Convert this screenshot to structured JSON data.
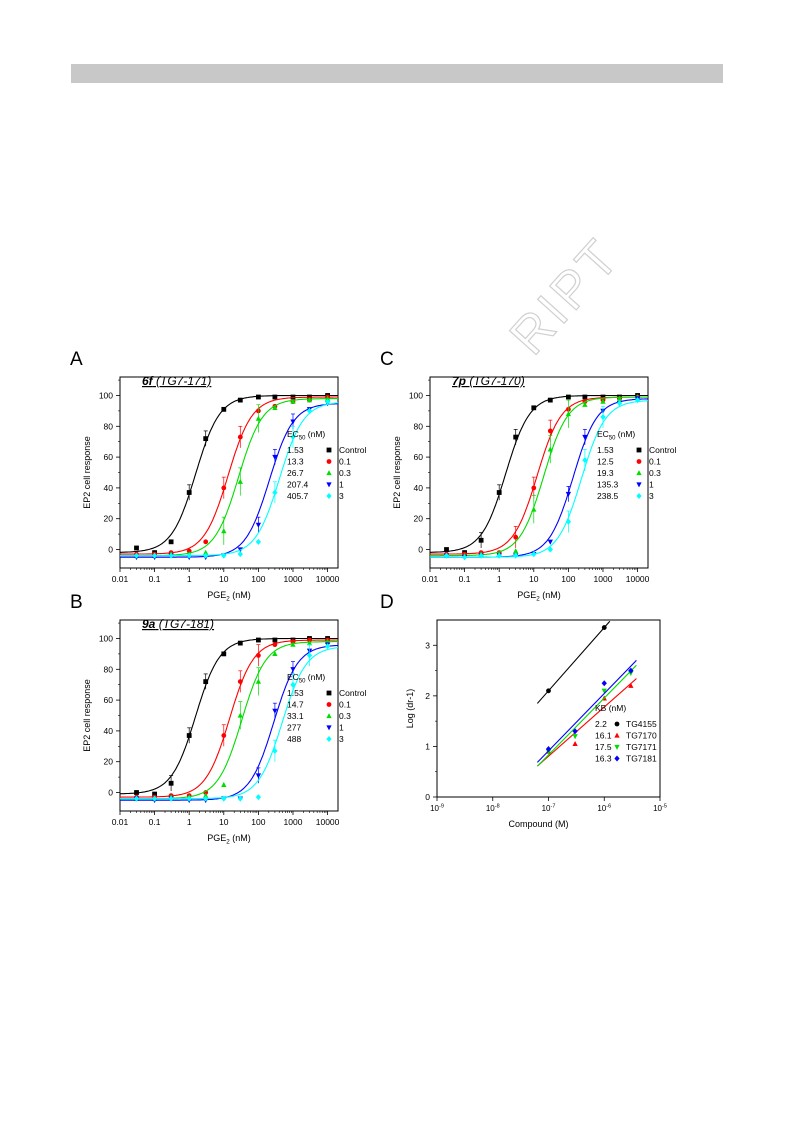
{
  "watermark": "RIPT",
  "chart_data": [
    {
      "panel_letter": "A",
      "type": "scatter",
      "title_compound": "6f",
      "title_code": "(TG7-171)",
      "xlabel": "PGE",
      "xlabel_sub": "2",
      "xlabel_unit": " (nM)",
      "ylabel": "EP2 cell response",
      "xscale": "log",
      "xlim": [
        0.01,
        20000
      ],
      "ylim": [
        -12,
        112
      ],
      "xticks": [
        "0.01",
        "0.1",
        "1",
        "10",
        "100",
        "1000",
        "10000"
      ],
      "yticks": [
        "0",
        "20",
        "40",
        "60",
        "80",
        "100"
      ],
      "legend_title": "EC",
      "legend_title_sub": "50",
      "legend_title_unit": " (nM)",
      "series": [
        {
          "name": "Control",
          "ec50_label": "1.53",
          "ec50": 1.53,
          "color": "#000000",
          "marker": "square",
          "x": [
            0.03,
            0.1,
            0.3,
            1,
            3,
            10,
            30,
            100,
            300,
            1000,
            3000,
            10000
          ],
          "y": [
            1,
            -2,
            5,
            37,
            72,
            91,
            97,
            99,
            99,
            99,
            99,
            100
          ]
        },
        {
          "name": "0.1",
          "ec50_label": "13.3",
          "ec50": 13.3,
          "color": "#ff0000",
          "marker": "circle",
          "x": [
            0.03,
            0.1,
            0.3,
            1,
            3,
            10,
            30,
            100,
            300,
            1000,
            3000,
            10000
          ],
          "y": [
            -3,
            -3,
            -2,
            -1,
            5,
            40,
            73,
            90,
            93,
            96,
            97,
            99
          ]
        },
        {
          "name": "0.3",
          "ec50_label": "26.7",
          "ec50": 26.7,
          "color": "#00dd00",
          "marker": "triangle-up",
          "x": [
            0.03,
            0.1,
            0.3,
            1,
            3,
            10,
            30,
            100,
            300,
            1000,
            3000,
            10000
          ],
          "y": [
            -4,
            -4,
            -3,
            -3,
            -2,
            12,
            44,
            85,
            92,
            96,
            97,
            98
          ]
        },
        {
          "name": "1",
          "ec50_label": "207.4",
          "ec50": 207.4,
          "color": "#0000ff",
          "marker": "triangle-down",
          "x": [
            0.03,
            0.1,
            0.3,
            1,
            3,
            10,
            30,
            100,
            300,
            1000,
            3000,
            10000
          ],
          "y": [
            -5,
            -5,
            -4,
            -5,
            -5,
            -4,
            0,
            16,
            60,
            83,
            91,
            95
          ]
        },
        {
          "name": "3",
          "ec50_label": "405.7",
          "ec50": 405.7,
          "color": "#00ffff",
          "marker": "diamond",
          "x": [
            0.03,
            0.1,
            0.3,
            1,
            3,
            10,
            30,
            100,
            300,
            1000,
            3000,
            10000
          ],
          "y": [
            -4,
            -4,
            -4,
            -4,
            -4,
            -4,
            -3,
            5,
            37,
            73,
            90,
            96
          ]
        }
      ]
    },
    {
      "panel_letter": "C",
      "type": "scatter",
      "title_compound": "7p",
      "title_code": "(TG7-170)",
      "xlabel": "PGE",
      "xlabel_sub": "2",
      "xlabel_unit": " (nM)",
      "ylabel": "EP2 cell response",
      "xscale": "log",
      "xlim": [
        0.01,
        20000
      ],
      "ylim": [
        -12,
        112
      ],
      "xticks": [
        "0.01",
        "0.1",
        "1",
        "10",
        "100",
        "1000",
        "10000"
      ],
      "yticks": [
        "0",
        "20",
        "40",
        "60",
        "80",
        "100"
      ],
      "legend_title": "EC",
      "legend_title_sub": "50",
      "legend_title_unit": " (nM)",
      "series": [
        {
          "name": "Control",
          "ec50_label": "1.53",
          "ec50": 1.53,
          "color": "#000000",
          "marker": "square",
          "x": [
            0.03,
            0.1,
            0.3,
            1,
            3,
            10,
            30,
            100,
            300,
            1000,
            3000,
            10000
          ],
          "y": [
            0,
            -2,
            6,
            37,
            73,
            92,
            97,
            99,
            99,
            99,
            99,
            100
          ]
        },
        {
          "name": "0.1",
          "ec50_label": "12.5",
          "ec50": 12.5,
          "color": "#ff0000",
          "marker": "circle",
          "x": [
            0.03,
            0.1,
            0.3,
            1,
            3,
            10,
            30,
            100,
            300,
            1000,
            3000,
            10000
          ],
          "y": [
            -3,
            -3,
            -2,
            -2,
            8,
            40,
            77,
            91,
            96,
            97,
            98,
            99
          ]
        },
        {
          "name": "0.3",
          "ec50_label": "19.3",
          "ec50": 19.3,
          "color": "#00dd00",
          "marker": "triangle-up",
          "x": [
            0.03,
            0.1,
            0.3,
            1,
            3,
            10,
            30,
            100,
            300,
            1000,
            3000,
            10000
          ],
          "y": [
            -4,
            -4,
            -3,
            -3,
            -1,
            26,
            65,
            88,
            94,
            96,
            98,
            99
          ]
        },
        {
          "name": "1",
          "ec50_label": "135.3",
          "ec50": 135.3,
          "color": "#0000ff",
          "marker": "triangle-down",
          "x": [
            0.03,
            0.1,
            0.3,
            1,
            3,
            10,
            30,
            100,
            300,
            1000,
            3000,
            10000
          ],
          "y": [
            -4,
            -5,
            -4,
            -4,
            -4,
            -3,
            5,
            36,
            73,
            90,
            95,
            98
          ]
        },
        {
          "name": "3",
          "ec50_label": "238.5",
          "ec50": 238.5,
          "color": "#00ffff",
          "marker": "diamond",
          "x": [
            0.03,
            0.1,
            0.3,
            1,
            3,
            10,
            30,
            100,
            300,
            1000,
            3000,
            10000
          ],
          "y": [
            -4,
            -5,
            -4,
            -4,
            -4,
            -3,
            0,
            18,
            58,
            86,
            95,
            97
          ]
        }
      ]
    },
    {
      "panel_letter": "B",
      "type": "scatter",
      "title_compound": "9a",
      "title_code": "(TG7-181)",
      "xlabel": "PGE",
      "xlabel_sub": "2",
      "xlabel_unit": " (nM)",
      "ylabel": "EP2 cell response",
      "xscale": "log",
      "xlim": [
        0.01,
        20000
      ],
      "ylim": [
        -12,
        112
      ],
      "xticks": [
        "0.01",
        "0.1",
        "1",
        "10",
        "100",
        "1000",
        "10000"
      ],
      "yticks": [
        "0",
        "20",
        "40",
        "60",
        "80",
        "100"
      ],
      "legend_title": "EC",
      "legend_title_sub": "50",
      "legend_title_unit": " (nM)",
      "series": [
        {
          "name": "Control",
          "ec50_label": "1.53",
          "ec50": 1.53,
          "color": "#000000",
          "marker": "square",
          "x": [
            0.03,
            0.1,
            0.3,
            1,
            3,
            10,
            30,
            100,
            300,
            1000,
            3000,
            10000
          ],
          "y": [
            0,
            -1,
            6,
            37,
            72,
            90,
            97,
            99,
            99,
            99,
            100,
            100
          ]
        },
        {
          "name": "0.1",
          "ec50_label": "14.7",
          "ec50": 14.7,
          "color": "#ff0000",
          "marker": "circle",
          "x": [
            0.03,
            0.1,
            0.3,
            1,
            3,
            10,
            30,
            100,
            300,
            1000,
            3000,
            10000
          ],
          "y": [
            -3,
            -3,
            -2,
            -2,
            0,
            37,
            72,
            89,
            96,
            98,
            99,
            99
          ]
        },
        {
          "name": "0.3",
          "ec50_label": "33.1",
          "ec50": 33.1,
          "color": "#00dd00",
          "marker": "triangle-up",
          "x": [
            0.03,
            0.1,
            0.3,
            1,
            3,
            10,
            30,
            100,
            300,
            1000,
            3000,
            10000
          ],
          "y": [
            -4,
            -4,
            -3,
            -3,
            -2,
            5,
            50,
            72,
            90,
            96,
            97,
            98
          ]
        },
        {
          "name": "1",
          "ec50_label": "277",
          "ec50": 277,
          "color": "#0000ff",
          "marker": "triangle-down",
          "x": [
            0.03,
            0.1,
            0.3,
            1,
            3,
            10,
            30,
            100,
            300,
            1000,
            3000,
            10000
          ],
          "y": [
            -4,
            -5,
            -4,
            -5,
            -5,
            -4,
            -4,
            11,
            53,
            80,
            92,
            96
          ]
        },
        {
          "name": "3",
          "ec50_label": "488",
          "ec50": 488,
          "color": "#00ffff",
          "marker": "diamond",
          "x": [
            0.03,
            0.1,
            0.3,
            1,
            3,
            10,
            30,
            100,
            300,
            1000,
            3000,
            10000
          ],
          "y": [
            -4,
            -4,
            -4,
            -4,
            -4,
            -4,
            -4,
            -3,
            27,
            70,
            89,
            95
          ]
        }
      ]
    },
    {
      "panel_letter": "D",
      "type": "scatter",
      "xlabel": "Compound (M)",
      "ylabel": "Log (dr-1)",
      "xscale": "log",
      "xlim": [
        1e-09,
        1e-05
      ],
      "ylim": [
        0,
        3.5
      ],
      "xtick_base": "10",
      "xtick_exps": [
        "-9",
        "-8",
        "-7",
        "-6",
        "-5"
      ],
      "yticks": [
        "0",
        "1",
        "2",
        "3"
      ],
      "legend_title": "KB (nM)",
      "series": [
        {
          "name": "TG4155",
          "kb_label": "2.2",
          "color": "#000000",
          "marker": "circle",
          "x": [
            1e-07,
            1e-06
          ],
          "y": [
            2.1,
            3.35
          ]
        },
        {
          "name": "TG7170",
          "kb_label": "16.1",
          "color": "#ff0000",
          "marker": "triangle-up",
          "x": [
            1e-07,
            3e-07,
            1e-06,
            3e-06
          ],
          "y": [
            0.9,
            1.05,
            1.95,
            2.2
          ]
        },
        {
          "name": "TG7171",
          "kb_label": "17.5",
          "color": "#00dd00",
          "marker": "triangle-down",
          "x": [
            1e-07,
            3e-07,
            1e-06,
            3e-06
          ],
          "y": [
            0.9,
            1.2,
            2.1,
            2.45
          ]
        },
        {
          "name": "TG7181",
          "kb_label": "16.3",
          "color": "#0000ff",
          "marker": "diamond",
          "x": [
            1e-07,
            3e-07,
            1e-06,
            3e-06
          ],
          "y": [
            0.95,
            1.3,
            2.25,
            2.5
          ]
        }
      ]
    }
  ]
}
